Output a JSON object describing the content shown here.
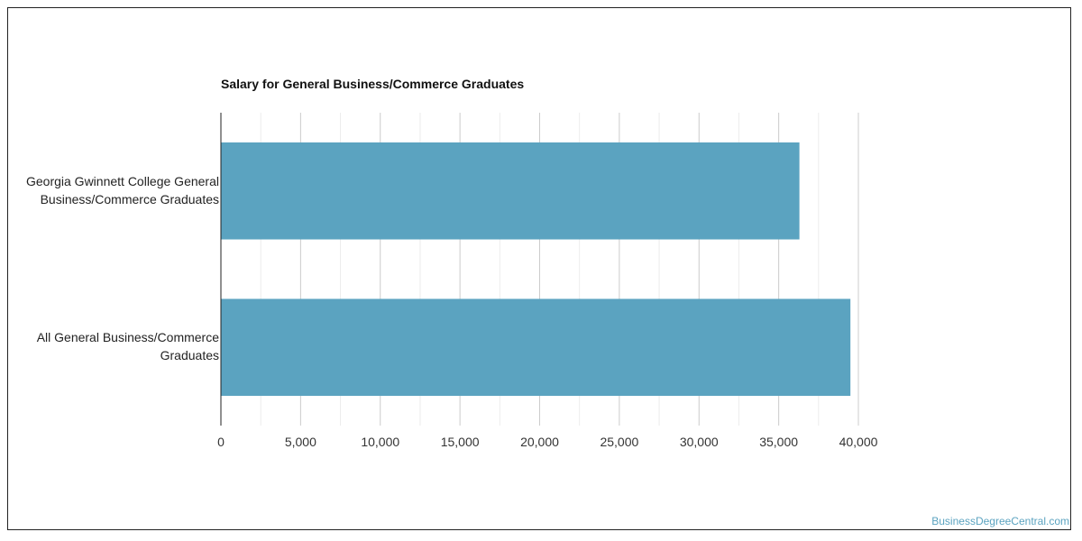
{
  "chart_data": {
    "type": "bar",
    "orientation": "horizontal",
    "title": "Salary for General Business/Commerce Graduates",
    "categories": [
      "Georgia Gwinnett College General Business/Commerce Graduates",
      "All General Business/Commerce Graduates"
    ],
    "category_lines": [
      [
        "Georgia Gwinnett College General",
        "Business/Commerce Graduates"
      ],
      [
        "All General Business/Commerce",
        "Graduates"
      ]
    ],
    "values": [
      36300,
      39500
    ],
    "xlabel": "",
    "ylabel": "",
    "xlim": [
      0,
      40000
    ],
    "x_ticks": [
      0,
      5000,
      10000,
      15000,
      20000,
      25000,
      30000,
      35000,
      40000
    ],
    "x_tick_labels": [
      "0",
      "5,000",
      "10,000",
      "15,000",
      "20,000",
      "25,000",
      "30,000",
      "35,000",
      "40,000"
    ],
    "grid": true,
    "legend": "none",
    "bar_color": "#5ba3c0"
  },
  "watermark": "BusinessDegreeCentral.com"
}
